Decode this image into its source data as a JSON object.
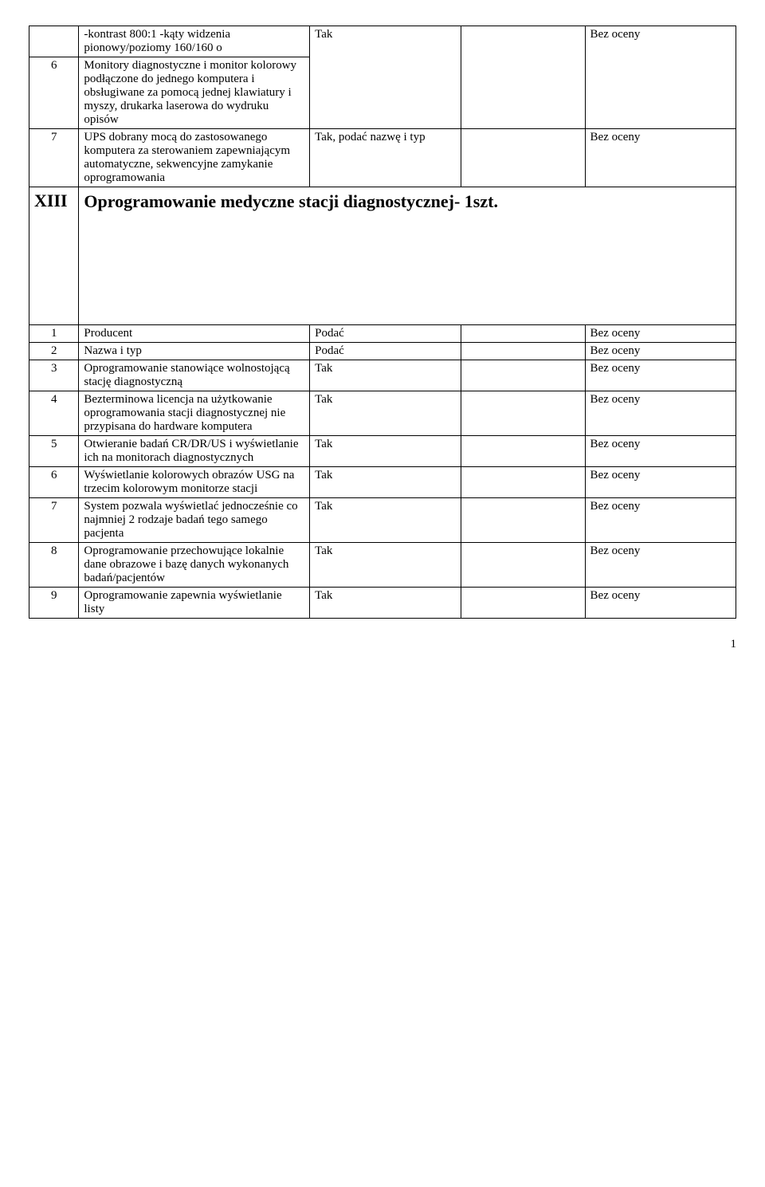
{
  "top_block": {
    "row1": {
      "num": "",
      "desc": "-kontrast 800:1\n-kąty widzenia pionowy/poziomy 160/160 o",
      "c3": "",
      "c4": "",
      "c5": ""
    },
    "row2": {
      "num": "6",
      "desc": "Monitory diagnostyczne i monitor kolorowy podłączone do jednego komputera i obsługiwane za pomocą jednej klawiatury i myszy, drukarka laserowa do wydruku opisów",
      "c3": "Tak",
      "c4": "",
      "c5": "Bez oceny"
    },
    "row3": {
      "num": "7",
      "desc": "UPS dobrany mocą do zastosowanego komputera za sterowaniem zapewniającym automatyczne, sekwencyjne zamykanie oprogramowania",
      "c3": "Tak, podać nazwę i typ",
      "c4": "",
      "c5": "Bez oceny"
    }
  },
  "section": {
    "roman": "XIII",
    "title": "Oprogramowanie medyczne stacji diagnostycznej- 1szt."
  },
  "bottom_rows": [
    {
      "num": "1",
      "desc": "Producent",
      "c3": "Podać",
      "c4": "",
      "c5": "Bez oceny"
    },
    {
      "num": "2",
      "desc": "Nazwa i typ",
      "c3": "Podać",
      "c4": "",
      "c5": "Bez oceny"
    },
    {
      "num": "3",
      "desc": "Oprogramowanie stanowiące wolnostojącą stację diagnostyczną",
      "c3": "Tak",
      "c4": "",
      "c5": "Bez oceny"
    },
    {
      "num": "4",
      "desc": "Bezterminowa licencja na użytkowanie oprogramowania stacji diagnostycznej nie przypisana do hardware komputera",
      "c3": "Tak",
      "c4": "",
      "c5": "Bez oceny"
    },
    {
      "num": "5",
      "desc": "Otwieranie badań CR/DR/US i wyświetlanie ich na monitorach diagnostycznych",
      "c3": "Tak",
      "c4": "",
      "c5": "Bez oceny"
    },
    {
      "num": "6",
      "desc": "Wyświetlanie kolorowych obrazów USG na trzecim kolorowym monitorze stacji",
      "c3": "Tak",
      "c4": "",
      "c5": "Bez oceny"
    },
    {
      "num": "7",
      "desc": "System pozwala wyświetlać jednocześnie co najmniej 2 rodzaje badań tego samego pacjenta",
      "c3": "Tak",
      "c4": "",
      "c5": "Bez oceny"
    },
    {
      "num": "8",
      "desc": "Oprogramowanie przechowujące lokalnie dane obrazowe i bazę danych wykonanych badań/pacjentów",
      "c3": "Tak",
      "c4": "",
      "c5": "Bez oceny"
    },
    {
      "num": "9",
      "desc": "Oprogramowanie zapewnia wyświetlanie listy",
      "c3": "Tak",
      "c4": "",
      "c5": "Bez oceny"
    }
  ],
  "footer": "1"
}
